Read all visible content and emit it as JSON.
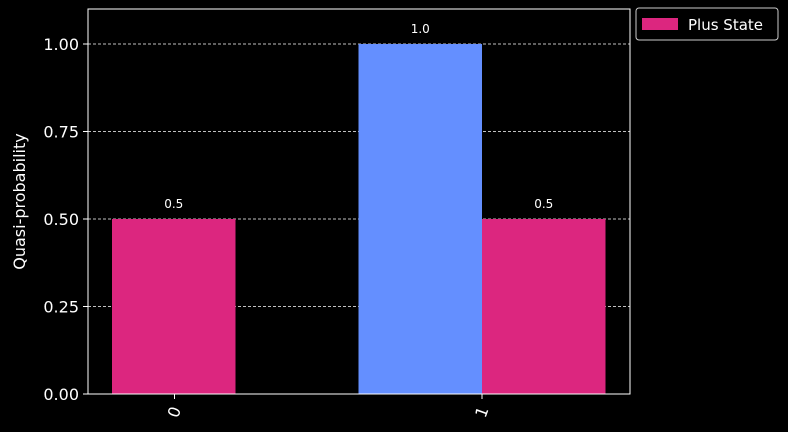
{
  "chart_data": {
    "type": "bar",
    "title": "",
    "xlabel": "",
    "ylabel": "Quasi-probability",
    "categories": [
      "0",
      "1"
    ],
    "ylim": [
      0,
      1.1
    ],
    "yticks": [
      "0.00",
      "0.25",
      "0.50",
      "0.75",
      "1.00"
    ],
    "ytick_values": [
      0,
      0.25,
      0.5,
      0.75,
      1.0
    ],
    "grid": "horizontal dashed",
    "legend_placement": "outside-top-right",
    "series": [
      {
        "name": "",
        "color": "#648fff",
        "values": [
          0,
          1.0
        ],
        "labels": [
          "",
          "1.0"
        ]
      },
      {
        "name": "Plus State",
        "color": "#dc267f",
        "values": [
          0.5,
          0.5
        ],
        "labels": [
          "0.5",
          "0.5"
        ]
      }
    ]
  }
}
